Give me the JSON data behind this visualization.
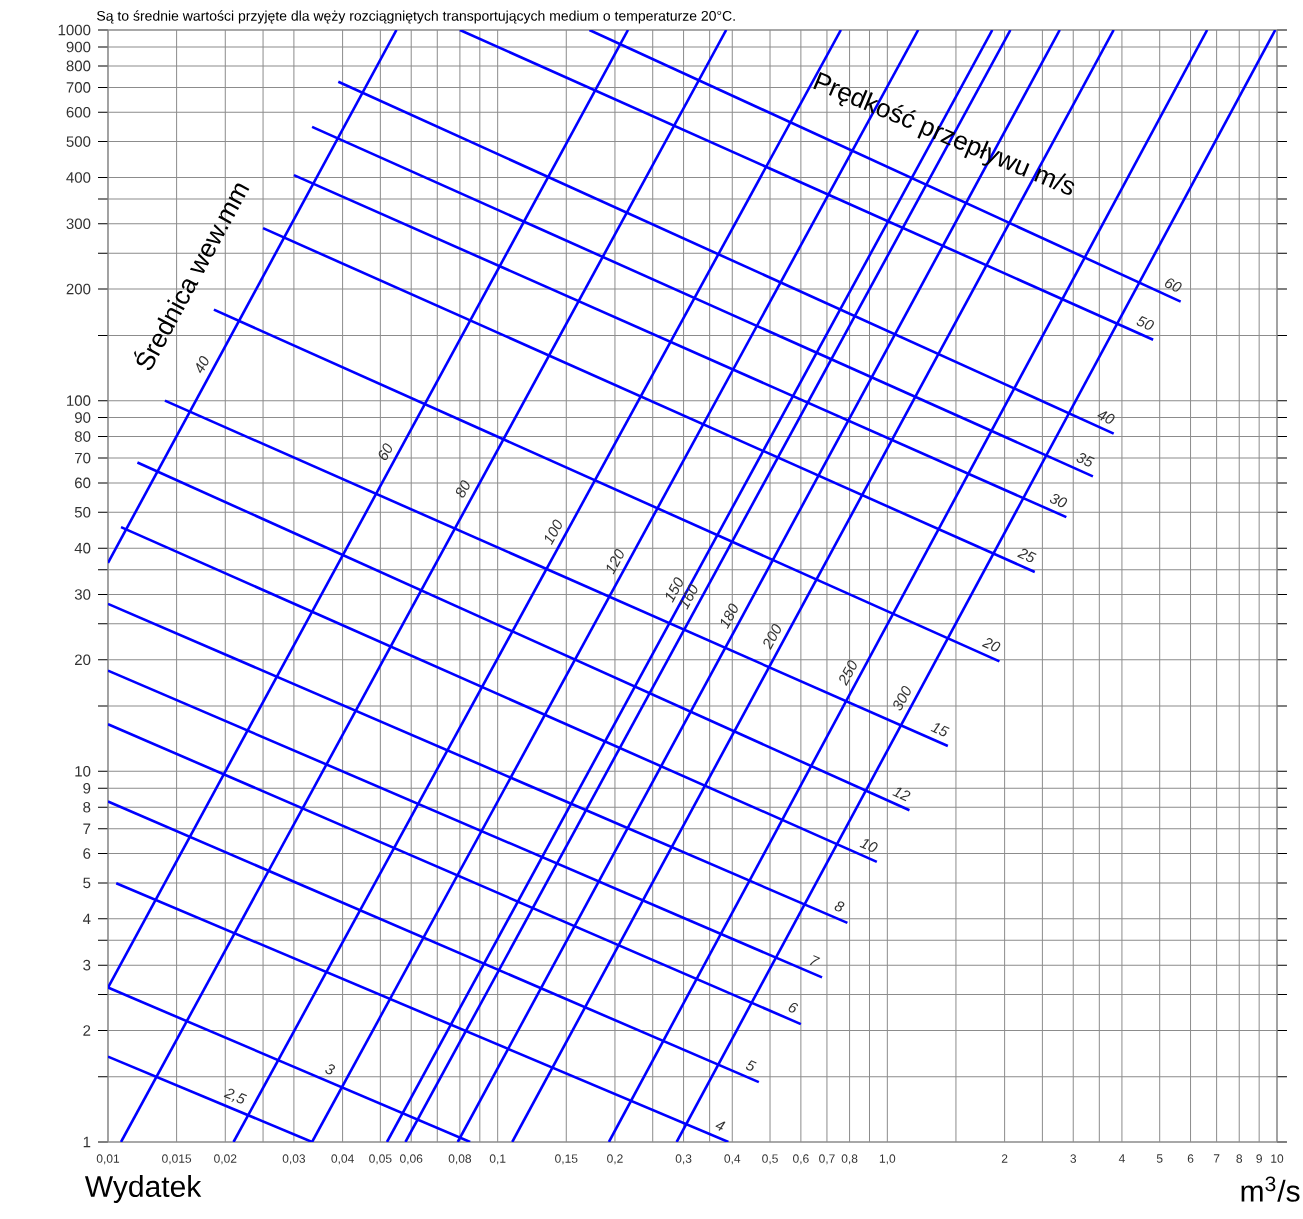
{
  "chart_data": {
    "type": "line",
    "log": "xy",
    "grid": true,
    "marker": "none",
    "line_style": "solid",
    "xlabel": "Wydatek",
    "xlim": [
      0.01,
      10
    ],
    "ylim": [
      1,
      1000
    ],
    "xticks": [
      {
        "value": 0.01,
        "label": "0,01"
      },
      {
        "value": 0.015,
        "label": "0,015"
      },
      {
        "value": 0.02,
        "label": "0,02"
      },
      {
        "value": 0.025,
        "label": null
      },
      {
        "value": 0.03,
        "label": "0,03"
      },
      {
        "value": 0.04,
        "label": "0,04"
      },
      {
        "value": 0.05,
        "label": "0,05"
      },
      {
        "value": 0.06,
        "label": "0,06"
      },
      {
        "value": 0.07,
        "label": null
      },
      {
        "value": 0.08,
        "label": "0,08"
      },
      {
        "value": 0.09,
        "label": null
      },
      {
        "value": 0.1,
        "label": "0,1"
      },
      {
        "value": 0.15,
        "label": "0,15"
      },
      {
        "value": 0.2,
        "label": "0,2"
      },
      {
        "value": 0.25,
        "label": null
      },
      {
        "value": 0.3,
        "label": "0,3"
      },
      {
        "value": 0.35,
        "label": null
      },
      {
        "value": 0.4,
        "label": "0,4"
      },
      {
        "value": 0.5,
        "label": "0,5"
      },
      {
        "value": 0.6,
        "label": "0,6"
      },
      {
        "value": 0.7,
        "label": "0,7"
      },
      {
        "value": 0.8,
        "label": "0,8"
      },
      {
        "value": 0.9,
        "label": null
      },
      {
        "value": 1,
        "label": "1,0"
      },
      {
        "value": 1.5,
        "label": null
      },
      2,
      {
        "value": 2.5,
        "label": null
      },
      3,
      {
        "value": 3.5,
        "label": null
      },
      4,
      5,
      6,
      7,
      8,
      9,
      10
    ],
    "yticks": [
      1,
      {
        "value": 1.5,
        "label": null
      },
      2,
      {
        "value": 2.5,
        "label": null
      },
      3,
      {
        "value": 3.5,
        "label": null
      },
      4,
      5,
      6,
      7,
      8,
      9,
      10,
      {
        "value": 15,
        "label": null
      },
      20,
      {
        "value": 25,
        "label": null
      },
      30,
      {
        "value": 35,
        "label": null
      },
      40,
      50,
      60,
      70,
      80,
      90,
      100,
      {
        "value": 150,
        "label": null
      },
      200,
      {
        "value": 250,
        "label": null
      },
      300,
      {
        "value": 350,
        "label": null
      },
      400,
      500,
      600,
      700,
      800,
      900,
      1000
    ],
    "series": [
      {
        "name": "40",
        "color": "#0000ff",
        "x": [
          0.01,
          0.055
        ],
        "values": [
          36.5,
          1000
        ]
      },
      {
        "name": "60",
        "color": "#0000ff",
        "x": [
          0.01,
          0.216
        ],
        "values": [
          2.61,
          1000
        ]
      },
      {
        "name": "80",
        "color": "#0000ff",
        "x": [
          0.0108,
          0.386
        ],
        "values": [
          1,
          1000
        ]
      },
      {
        "name": "100",
        "color": "#0000ff",
        "x": [
          0.021,
          0.76
        ],
        "values": [
          1,
          1000
        ]
      },
      {
        "name": "120",
        "color": "#0000ff",
        "x": [
          0.0334,
          1.2
        ],
        "values": [
          1,
          1000
        ]
      },
      {
        "name": "150",
        "color": "#0000ff",
        "x": [
          0.052,
          1.86
        ],
        "values": [
          1,
          1000
        ]
      },
      {
        "name": "160",
        "color": "#0000ff",
        "x": [
          0.058,
          2.07
        ],
        "values": [
          1,
          1000
        ]
      },
      {
        "name": "180",
        "color": "#0000ff",
        "x": [
          0.079,
          2.77
        ],
        "values": [
          1,
          1000
        ]
      },
      {
        "name": "200",
        "color": "#0000ff",
        "x": [
          0.109,
          3.81
        ],
        "values": [
          1,
          1000
        ]
      },
      {
        "name": "250",
        "color": "#0000ff",
        "x": [
          0.193,
          6.62
        ],
        "values": [
          1,
          1000
        ]
      },
      {
        "name": "300",
        "color": "#0000ff",
        "x": [
          0.288,
          9.9
        ],
        "values": [
          1,
          1000
        ]
      },
      {
        "name": "60",
        "color": "#0000ff",
        "x": [
          0.172,
          5.66
        ],
        "values": [
          1000,
          185
        ]
      },
      {
        "name": "50",
        "color": "#0000ff",
        "x": [
          0.08,
          4.81
        ],
        "values": [
          1000,
          146
        ]
      },
      {
        "name": "40",
        "color": "#0000ff",
        "x": [
          0.039,
          3.81
        ],
        "values": [
          725,
          81.5
        ]
      },
      {
        "name": "35",
        "color": "#0000ff",
        "x": [
          0.0334,
          3.37
        ],
        "values": [
          548,
          62.5
        ]
      },
      {
        "name": "30",
        "color": "#0000ff",
        "x": [
          0.03,
          2.88
        ],
        "values": [
          406,
          48.5
        ]
      },
      {
        "name": "25",
        "color": "#0000ff",
        "x": [
          0.025,
          2.39
        ],
        "values": [
          292,
          34.5
        ]
      },
      {
        "name": "20",
        "color": "#0000ff",
        "x": [
          0.0187,
          1.94
        ],
        "values": [
          176,
          19.8
        ]
      },
      {
        "name": "15",
        "color": "#0000ff",
        "x": [
          0.014,
          1.43
        ],
        "values": [
          100,
          11.7
        ]
      },
      {
        "name": "12",
        "color": "#0000ff",
        "x": [
          0.0119,
          1.14
        ],
        "values": [
          68.1,
          7.85
        ]
      },
      {
        "name": "10",
        "color": "#0000ff",
        "x": [
          0.0108,
          0.94
        ],
        "values": [
          45.6,
          5.7
        ]
      },
      {
        "name": "8",
        "color": "#0000ff",
        "x": [
          0.01,
          0.79
        ],
        "values": [
          28.3,
          3.9
        ]
      },
      {
        "name": "7",
        "color": "#0000ff",
        "x": [
          0.01,
          0.68
        ],
        "values": [
          18.7,
          2.78
        ]
      },
      {
        "name": "6",
        "color": "#0000ff",
        "x": [
          0.01,
          0.6
        ],
        "values": [
          13.4,
          2.08
        ]
      },
      {
        "name": "5",
        "color": "#0000ff",
        "x": [
          0.01,
          0.468
        ],
        "values": [
          8.29,
          1.45
        ]
      },
      {
        "name": "4",
        "color": "#0000ff",
        "x": [
          0.0105,
          0.391
        ],
        "values": [
          4.99,
          1
        ]
      },
      {
        "name": "3",
        "color": "#0000ff",
        "x": [
          0.01,
          0.085
        ],
        "values": [
          2.61,
          1
        ]
      },
      {
        "name": "2,5",
        "color": "#0000ff",
        "x": [
          0.01,
          0.0334
        ],
        "values": [
          1.7,
          1
        ]
      }
    ],
    "annotations": [
      "Są to średnie wartości przyjęte dla węży rozciągniętych transportujących medium o temperaturze 20°C.",
      "m$^{3}$/s",
      "Średnica wew.mm",
      "Prędkość przepływu m/s"
    ]
  }
}
